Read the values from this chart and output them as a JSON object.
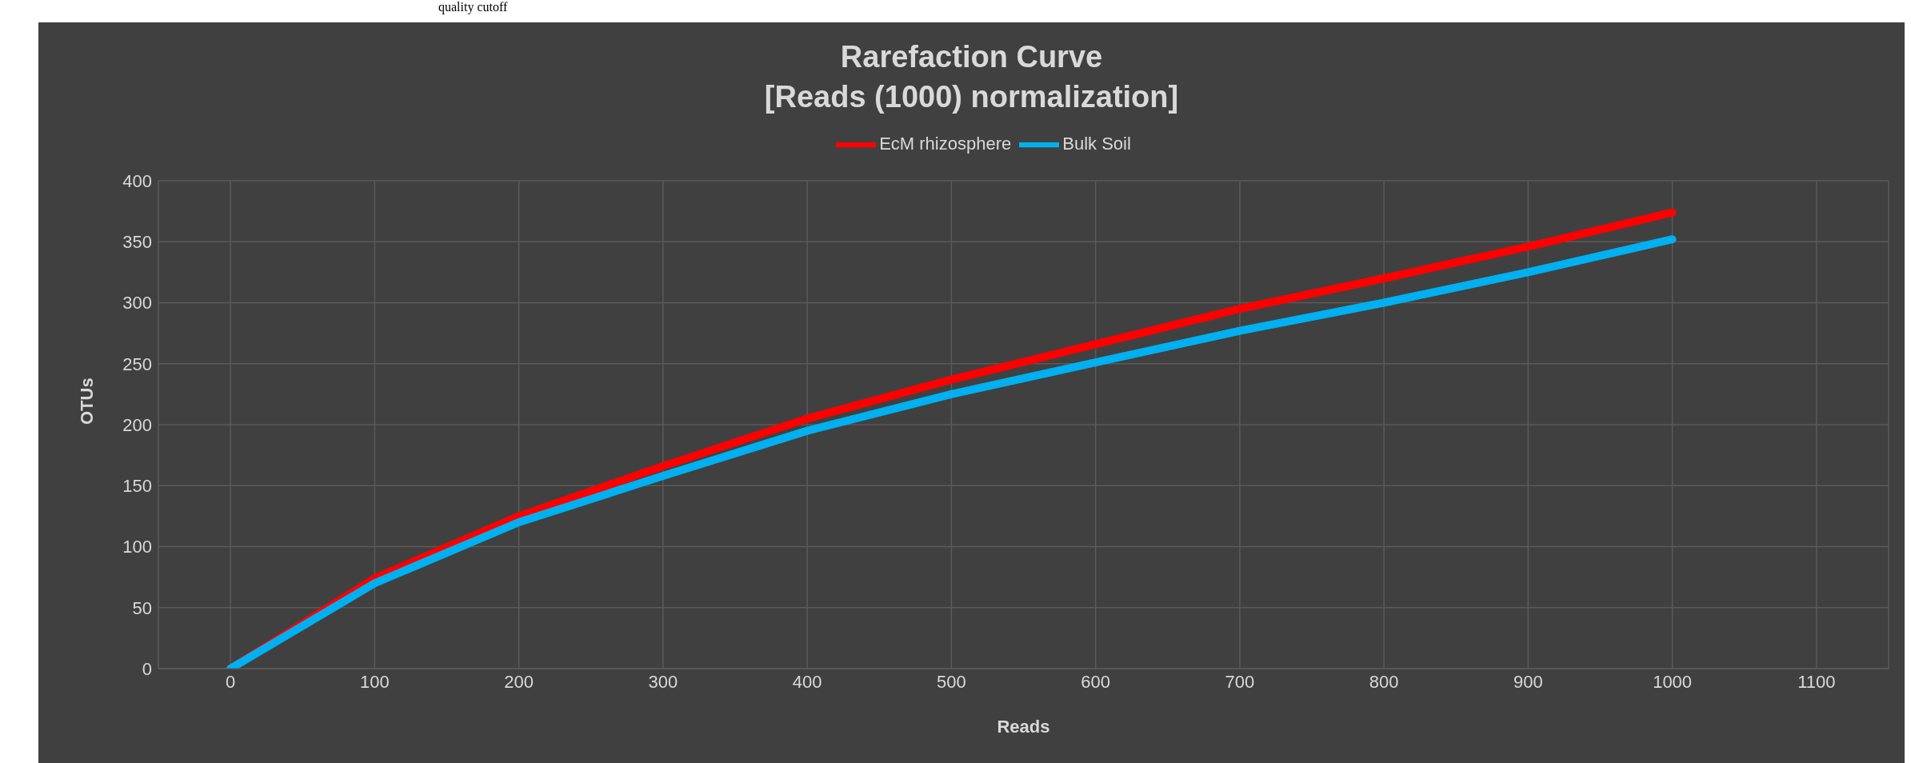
{
  "chart_data": {
    "type": "line",
    "title": "Rarefaction Curve",
    "subtitle": "[Reads (1000) normalization]",
    "xlabel": "Reads",
    "ylabel": "OTUs",
    "annotations": [
      "quality cutoff"
    ],
    "x": [
      0,
      100,
      200,
      300,
      400,
      500,
      600,
      700,
      800,
      900,
      1000
    ],
    "series": [
      {
        "name": "EcM rhizosphere",
        "color": "#ff0000",
        "values": [
          0,
          74,
          125,
          166,
          205,
          237,
          266,
          295,
          320,
          346,
          374
        ]
      },
      {
        "name": "Bulk Soil",
        "color": "#00b0f0",
        "values": [
          0,
          70,
          120,
          158,
          195,
          225,
          251,
          277,
          300,
          325,
          352
        ]
      }
    ],
    "xlim": [
      -50,
      1150
    ],
    "xticks": [
      0,
      100,
      200,
      300,
      400,
      500,
      600,
      700,
      800,
      900,
      1000,
      1100
    ],
    "ylim": [
      0,
      400
    ],
    "yticks": [
      0,
      50,
      100,
      150,
      200,
      250,
      300,
      350,
      400
    ],
    "grid": true,
    "legend": "top",
    "marker": "none",
    "line_style": "solid"
  }
}
